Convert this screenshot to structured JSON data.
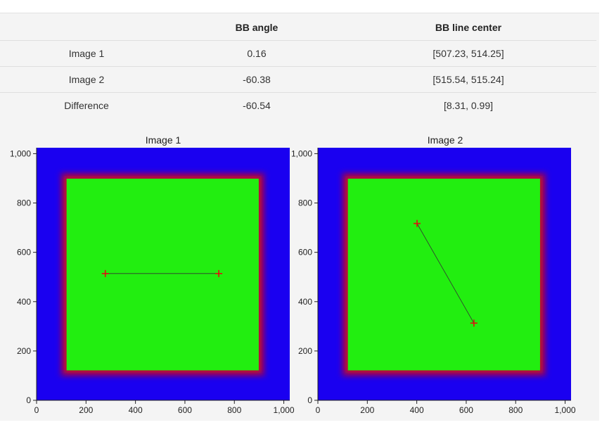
{
  "table": {
    "headers": [
      "",
      "BB angle",
      "BB line center"
    ],
    "rows": [
      {
        "label": "Image 1",
        "angle": "0.16",
        "center": "[507.23, 514.25]"
      },
      {
        "label": "Image 2",
        "angle": "-60.38",
        "center": "[515.54, 515.24]"
      },
      {
        "label": "Difference",
        "angle": "-60.54",
        "center": "[8.31, 0.99]"
      }
    ]
  },
  "chart_data": [
    {
      "type": "heatmap",
      "title": "Image 1",
      "xlim": [
        0,
        1024
      ],
      "ylim": [
        0,
        1024
      ],
      "xticks": [
        0,
        200,
        400,
        600,
        800,
        1000
      ],
      "yticks": [
        0,
        200,
        400,
        600,
        800,
        1000
      ],
      "xtick_labels": [
        "0",
        "200",
        "400",
        "600",
        "800",
        "1,000"
      ],
      "ytick_labels": [
        "0",
        "200",
        "400",
        "600",
        "800",
        "1,000"
      ],
      "field_square": [
        110,
        110,
        910,
        910
      ],
      "colors": {
        "background": "#1a00f0",
        "field": "#22ee10",
        "edge": "#cc1020",
        "marker": "#e01010",
        "line": "#333333"
      },
      "markers": [
        [
          278,
          514
        ],
        [
          737,
          514
        ]
      ]
    },
    {
      "type": "heatmap",
      "title": "Image 2",
      "xlim": [
        0,
        1024
      ],
      "ylim": [
        0,
        1024
      ],
      "xticks": [
        0,
        200,
        400,
        600,
        800,
        1000
      ],
      "yticks": [
        0,
        200,
        400,
        600,
        800,
        1000
      ],
      "xtick_labels": [
        "0",
        "200",
        "400",
        "600",
        "800",
        "1,000"
      ],
      "ytick_labels": [
        "0",
        "200",
        "400",
        "600",
        "800",
        "1,000"
      ],
      "field_square": [
        110,
        110,
        910,
        910
      ],
      "colors": {
        "background": "#1a00f0",
        "field": "#22ee10",
        "edge": "#cc1020",
        "marker": "#e01010",
        "line": "#333333"
      },
      "markers": [
        [
          401,
          717
        ],
        [
          631,
          313
        ]
      ]
    }
  ]
}
